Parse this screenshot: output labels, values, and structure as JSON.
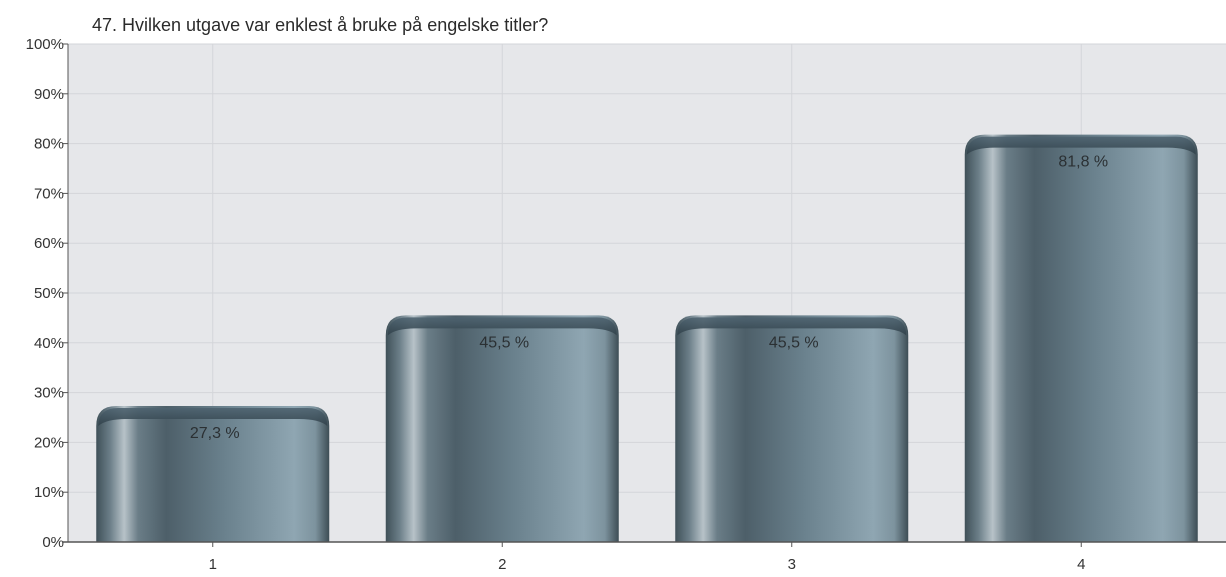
{
  "chart_data": {
    "type": "bar",
    "title": "47. Hvilken utgave var enklest å bruke på engelske titler?",
    "xlabel": "",
    "ylabel": "",
    "categories": [
      "1",
      "2",
      "3",
      "4"
    ],
    "values": [
      27.3,
      45.5,
      45.5,
      81.8
    ],
    "value_labels": [
      "27,3 %",
      "45,5 %",
      "45,5 %",
      "81,8 %"
    ],
    "ylim": [
      0,
      100
    ],
    "y_ticks": [
      "0%",
      "10%",
      "20%",
      "30%",
      "40%",
      "50%",
      "60%",
      "70%",
      "80%",
      "90%",
      "100%"
    ],
    "grid": true,
    "legend": "none",
    "colors": {
      "plot_background": "#e6e7ea",
      "gridline": "#d3d5d9",
      "axis": "#555555",
      "bar_dark": "#4b5d68",
      "bar_mid": "#6f8794",
      "bar_light": "#8ea5b1",
      "bar_highlight": "#b9c4ca"
    }
  }
}
